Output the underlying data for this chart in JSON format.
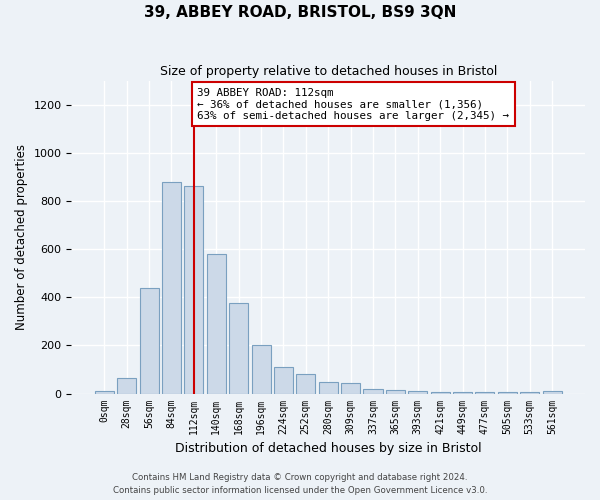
{
  "title": "39, ABBEY ROAD, BRISTOL, BS9 3QN",
  "subtitle": "Size of property relative to detached houses in Bristol",
  "xlabel": "Distribution of detached houses by size in Bristol",
  "ylabel": "Number of detached properties",
  "categories": [
    "0sqm",
    "28sqm",
    "56sqm",
    "84sqm",
    "112sqm",
    "140sqm",
    "168sqm",
    "196sqm",
    "224sqm",
    "252sqm",
    "280sqm",
    "309sqm",
    "337sqm",
    "365sqm",
    "393sqm",
    "421sqm",
    "449sqm",
    "477sqm",
    "505sqm",
    "533sqm",
    "561sqm"
  ],
  "values": [
    10,
    65,
    440,
    880,
    860,
    580,
    375,
    200,
    110,
    80,
    50,
    45,
    20,
    15,
    12,
    8,
    6,
    5,
    5,
    5,
    10
  ],
  "bar_color": "#ccd9e8",
  "bar_edge_color": "#7aa0c0",
  "marker_line_index": 4,
  "marker_label": "39 ABBEY ROAD: 112sqm",
  "annotation_line1": "← 36% of detached houses are smaller (1,356)",
  "annotation_line2": "63% of semi-detached houses are larger (2,345) →",
  "marker_line_color": "#cc0000",
  "ylim": [
    0,
    1300
  ],
  "yticks": [
    0,
    200,
    400,
    600,
    800,
    1000,
    1200
  ],
  "background_color": "#edf2f7",
  "grid_color": "#ffffff",
  "footer_line1": "Contains HM Land Registry data © Crown copyright and database right 2024.",
  "footer_line2": "Contains public sector information licensed under the Open Government Licence v3.0."
}
